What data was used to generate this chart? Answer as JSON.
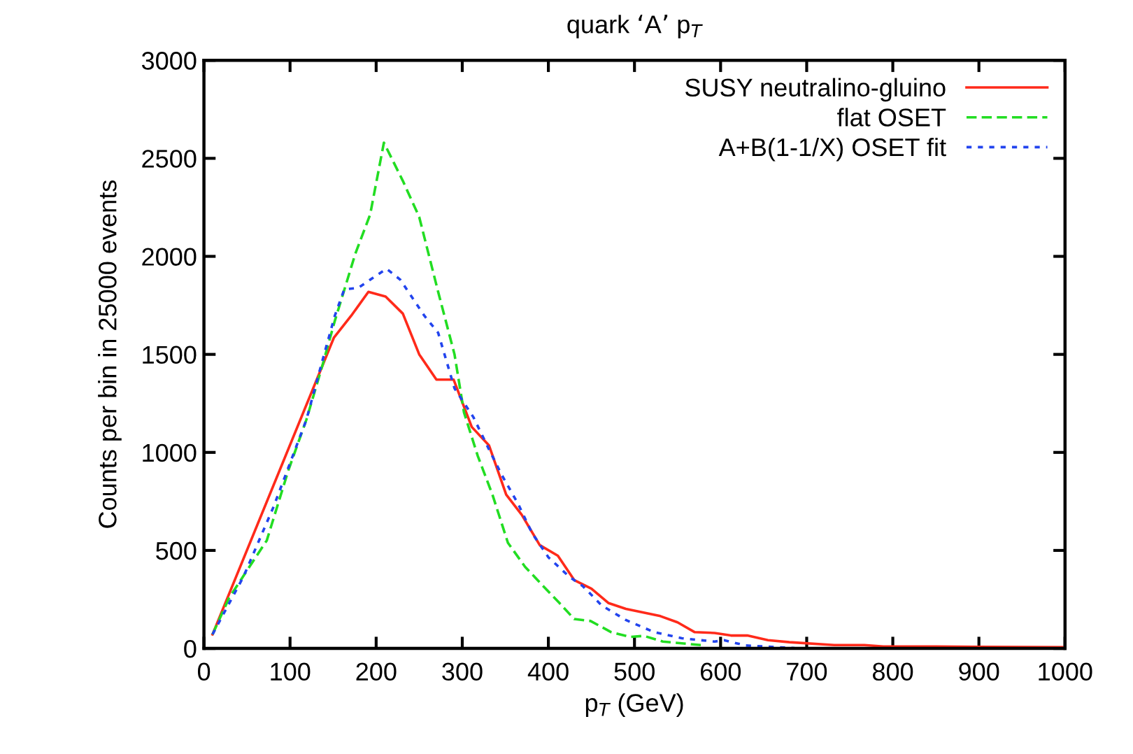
{
  "chart_data": {
    "type": "line",
    "title": "quark ‘A’ p$_{T}$",
    "xlabel": "p$_{T}$ (GeV)",
    "ylabel": "Counts per bin in 25000 events",
    "xlim": [
      0,
      1000
    ],
    "ylim": [
      0,
      3000
    ],
    "xticks": [
      0,
      100,
      200,
      300,
      400,
      500,
      600,
      700,
      800,
      900,
      1000
    ],
    "yticks": [
      0,
      500,
      1000,
      1500,
      2000,
      2500,
      3000
    ],
    "grid": false,
    "legend": "top right",
    "series": [
      {
        "name": "SUSY neutralino-gluino",
        "color": "#ff2a1a",
        "line_style": "solid",
        "x": [
          10,
          151,
          171,
          191,
          211,
          231,
          250,
          270,
          290,
          311,
          331,
          351,
          369,
          390,
          411,
          430,
          450,
          470,
          490,
          530,
          550,
          570,
          593,
          612,
          631,
          655,
          680,
          732,
          767,
          789,
          850,
          900,
          950,
          1000
        ],
        "values": [
          72,
          1586,
          1697,
          1819,
          1795,
          1708,
          1500,
          1371,
          1371,
          1130,
          1036,
          785,
          682,
          527,
          473,
          349,
          305,
          231,
          202,
          165,
          133,
          83,
          79,
          66,
          66,
          42,
          32,
          17,
          17,
          10,
          10,
          8,
          7,
          6
        ]
      },
      {
        "name": "flat OSET",
        "color": "#22dd22",
        "line_style": "dashed",
        "x": [
          10,
          29,
          49,
          73,
          98,
          119,
          138,
          152,
          176,
          193,
          209,
          231,
          250,
          272,
          291,
          302,
          318,
          335,
          353,
          373,
          394,
          413,
          430,
          449,
          473,
          495,
          511,
          533,
          577
        ],
        "values": [
          72,
          256,
          391,
          551,
          908,
          1167,
          1450,
          1671,
          2016,
          2213,
          2580,
          2385,
          2201,
          1819,
          1500,
          1204,
          982,
          785,
          539,
          416,
          318,
          231,
          150,
          140,
          83,
          59,
          64,
          35,
          17
        ]
      },
      {
        "name": "A+B(1-1/X) OSET fit",
        "color": "#2244ee",
        "line_style": "dotted",
        "x": [
          10,
          46,
          81,
          119,
          138,
          152,
          163,
          179,
          212,
          228,
          256,
          272,
          291,
          313,
          332,
          346,
          365,
          381,
          400,
          424,
          440,
          462,
          490,
          523,
          555,
          593,
          604,
          629,
          686
        ],
        "values": [
          72,
          367,
          724,
          1167,
          1475,
          1697,
          1832,
          1839,
          1937,
          1881,
          1697,
          1610,
          1327,
          1179,
          1007,
          884,
          736,
          589,
          465,
          367,
          318,
          219,
          145,
          83,
          52,
          35,
          42,
          15,
          2
        ]
      }
    ]
  }
}
